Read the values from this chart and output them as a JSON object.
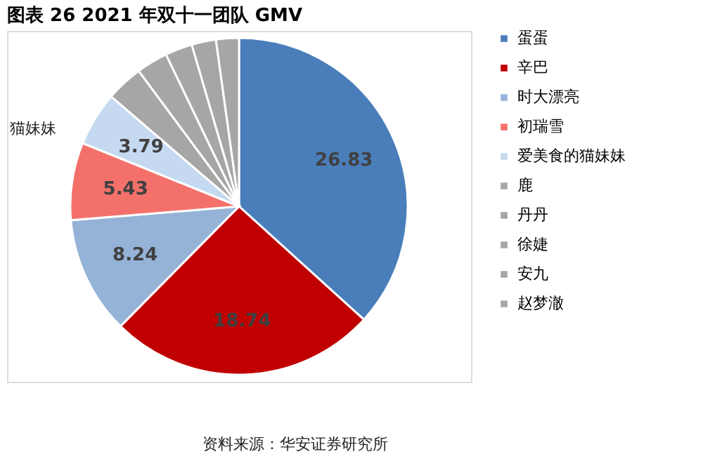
{
  "chart_data": {
    "type": "pie",
    "title": "图表 26 2021 年双十一团队 GMV",
    "categories": [
      "蛋蛋",
      "辛巴",
      "时大漂亮",
      "初瑞雪",
      "爱美食的猫妹妹",
      "鹿",
      "丹丹",
      "徐婕",
      "安九",
      "赵梦澈"
    ],
    "values": [
      26.83,
      18.74,
      8.24,
      5.43,
      3.79,
      2.6,
      2.2,
      1.9,
      1.7,
      1.6
    ],
    "value_labels": [
      "26.83",
      "18.74",
      "8.24",
      "5.43",
      "3.79",
      null,
      null,
      null,
      null,
      null
    ],
    "colors": [
      "#4a7ebb",
      "#c00000",
      "#95b3d7",
      "#f4716b",
      "#c5d9f1",
      "#a6a6a6",
      "#a6a6a6",
      "#a6a6a6",
      "#a6a6a6",
      "#a6a6a6"
    ],
    "legend": "right",
    "annotations": [
      "猫妹妹",
      "资料来源：华安证券研究所"
    ]
  }
}
